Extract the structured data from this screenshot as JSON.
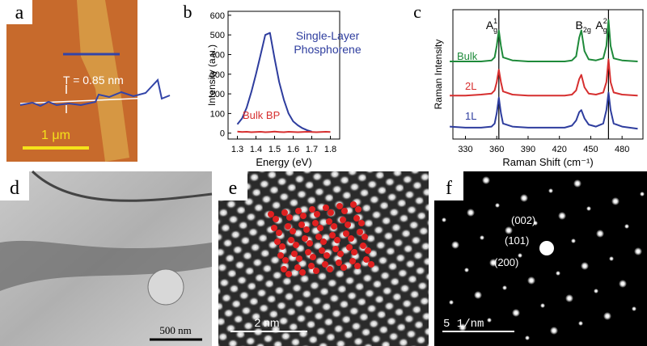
{
  "panels": {
    "a": {
      "label": "a",
      "thickness": "T = 0.85 nm",
      "scale_bar": "1 μm"
    },
    "d": {
      "label": "d",
      "scale_bar": "500 nm"
    },
    "e": {
      "label": "e",
      "scale_bar": "2 nm"
    },
    "f": {
      "label": "f",
      "scale_bar": "5 1/nm",
      "spots": [
        "(002)",
        "(101)",
        "(200)"
      ]
    }
  },
  "chart_data": [
    {
      "type": "line",
      "label": "b",
      "xlabel": "Energy (eV)",
      "ylabel": "Intensity (a.u.)",
      "x": [
        1.3,
        1.325,
        1.35,
        1.375,
        1.4,
        1.425,
        1.45,
        1.475,
        1.5,
        1.525,
        1.55,
        1.575,
        1.6,
        1.625,
        1.65,
        1.675,
        1.7,
        1.725,
        1.75,
        1.775,
        1.8
      ],
      "series": [
        {
          "name": "Single-Layer Phosphorene",
          "color": "#2e3d9e",
          "values": [
            45,
            75,
            130,
            210,
            300,
            400,
            500,
            510,
            380,
            260,
            170,
            100,
            60,
            40,
            25,
            15,
            8,
            null,
            null,
            null,
            null
          ]
        },
        {
          "name": "Bulk BP",
          "color": "#d62f2f",
          "values": [
            8,
            6,
            7,
            5,
            6,
            7,
            5,
            6,
            8,
            6,
            5,
            7,
            6,
            5,
            6,
            7,
            6,
            5,
            6,
            7,
            6
          ]
        }
      ],
      "xlim": [
        1.25,
        1.85
      ],
      "xticks": [
        1.3,
        1.4,
        1.5,
        1.6,
        1.7,
        1.8
      ],
      "ylim": [
        -30,
        620
      ],
      "yticks": [
        0,
        100,
        200,
        300,
        400,
        500,
        600
      ]
    },
    {
      "type": "line",
      "label": "c",
      "xlabel": "Raman Shift (cm⁻¹)",
      "ylabel": "Raman Intensity",
      "x": [
        315,
        330,
        345,
        355,
        358,
        360,
        362,
        364,
        366,
        375,
        390,
        410,
        425,
        432,
        436,
        439,
        441,
        444,
        448,
        455,
        462,
        465,
        467,
        469,
        472,
        480,
        495
      ],
      "series": [
        {
          "name": "Bulk",
          "color": "#1e8a3a",
          "values": [
            0.75,
            0.75,
            0.75,
            0.76,
            0.79,
            0.9,
            1.05,
            0.9,
            0.79,
            0.76,
            0.75,
            0.75,
            0.75,
            0.76,
            0.8,
            0.98,
            1.05,
            0.85,
            0.77,
            0.76,
            0.78,
            0.9,
            1.15,
            0.9,
            0.78,
            0.76,
            0.75
          ]
        },
        {
          "name": "2L",
          "color": "#d62f2f",
          "values": [
            0.42,
            0.42,
            0.43,
            0.44,
            0.47,
            0.55,
            0.67,
            0.55,
            0.46,
            0.43,
            0.42,
            0.42,
            0.42,
            0.43,
            0.47,
            0.58,
            0.62,
            0.5,
            0.44,
            0.43,
            0.45,
            0.55,
            0.77,
            0.55,
            0.45,
            0.43,
            0.42
          ]
        },
        {
          "name": "1L",
          "color": "#2e3d9e",
          "values": [
            0.12,
            0.11,
            0.11,
            0.12,
            0.15,
            0.25,
            0.4,
            0.25,
            0.15,
            0.12,
            0.11,
            0.11,
            0.11,
            0.13,
            0.18,
            0.26,
            0.28,
            0.2,
            0.14,
            0.12,
            0.15,
            0.28,
            0.45,
            0.28,
            0.15,
            0.12,
            0.1
          ]
        }
      ],
      "annotations": [
        {
          "base": "A",
          "sub": "g",
          "sup": "1",
          "x": 362,
          "marker_line": true
        },
        {
          "base": "B",
          "sub": "2g",
          "x": 440,
          "marker_line": false
        },
        {
          "base": "A",
          "sub": "g",
          "sup": "2",
          "x": 467,
          "marker_line": true
        }
      ],
      "xlim": [
        318,
        500
      ],
      "xticks": [
        330,
        360,
        390,
        420,
        450,
        480
      ],
      "ylim": [
        0,
        1.25
      ]
    }
  ]
}
